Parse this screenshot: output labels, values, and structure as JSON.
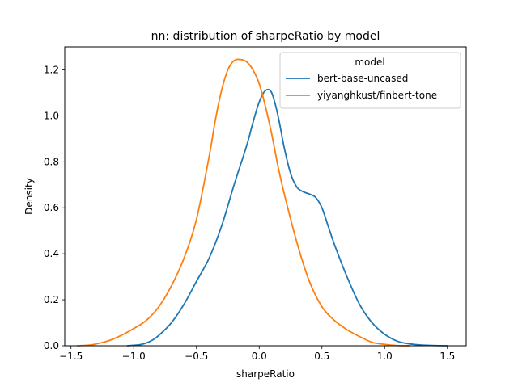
{
  "chart_data": {
    "type": "line",
    "title": "nn: distribution of sharpeRatio by model",
    "xlabel": "sharpeRatio",
    "ylabel": "Density",
    "xlim": [
      -1.55,
      1.65
    ],
    "ylim": [
      0,
      1.3
    ],
    "xticks": [
      -1.5,
      -1.0,
      -0.5,
      0.0,
      0.5,
      1.0,
      1.5
    ],
    "xtick_labels": [
      "−1.5",
      "−1.0",
      "−0.5",
      "0.0",
      "0.5",
      "1.0",
      "1.5"
    ],
    "yticks": [
      0.0,
      0.2,
      0.4,
      0.6,
      0.8,
      1.0,
      1.2
    ],
    "ytick_labels": [
      "0.0",
      "0.2",
      "0.4",
      "0.6",
      "0.8",
      "1.0",
      "1.2"
    ],
    "grid": false,
    "legend": {
      "title": "model",
      "position": "upper-right"
    },
    "series": [
      {
        "name": "bert-base-uncased",
        "color": "#1f77b4",
        "x": [
          -1.05,
          -0.95,
          -0.9,
          -0.85,
          -0.8,
          -0.7,
          -0.6,
          -0.5,
          -0.4,
          -0.3,
          -0.2,
          -0.1,
          -0.05,
          0.0,
          0.05,
          0.1,
          0.15,
          0.2,
          0.25,
          0.3,
          0.35,
          0.4,
          0.45,
          0.5,
          0.55,
          0.6,
          0.7,
          0.8,
          0.9,
          1.0,
          1.1,
          1.2,
          1.3,
          1.4,
          1.5
        ],
        "y": [
          0.0,
          0.005,
          0.012,
          0.025,
          0.045,
          0.1,
          0.18,
          0.28,
          0.38,
          0.52,
          0.7,
          0.87,
          0.97,
          1.06,
          1.11,
          1.1,
          1.0,
          0.86,
          0.75,
          0.69,
          0.67,
          0.66,
          0.645,
          0.6,
          0.52,
          0.44,
          0.3,
          0.18,
          0.1,
          0.05,
          0.02,
          0.008,
          0.003,
          0.001,
          0.0
        ]
      },
      {
        "name": "yiyanghkust/finbert-tone",
        "color": "#ff7f0e",
        "x": [
          -1.45,
          -1.35,
          -1.3,
          -1.2,
          -1.1,
          -1.0,
          -0.9,
          -0.8,
          -0.7,
          -0.6,
          -0.5,
          -0.4,
          -0.35,
          -0.3,
          -0.25,
          -0.2,
          -0.15,
          -0.1,
          -0.05,
          0.0,
          0.05,
          0.1,
          0.15,
          0.2,
          0.3,
          0.4,
          0.5,
          0.6,
          0.7,
          0.8,
          0.9,
          1.0,
          1.05,
          1.1,
          1.2
        ],
        "y": [
          0.0,
          0.003,
          0.008,
          0.022,
          0.045,
          0.075,
          0.11,
          0.17,
          0.26,
          0.38,
          0.55,
          0.82,
          0.98,
          1.11,
          1.2,
          1.24,
          1.245,
          1.235,
          1.2,
          1.14,
          1.04,
          0.92,
          0.78,
          0.66,
          0.45,
          0.28,
          0.17,
          0.11,
          0.07,
          0.04,
          0.015,
          0.006,
          0.003,
          0.001,
          0.0
        ]
      }
    ]
  }
}
